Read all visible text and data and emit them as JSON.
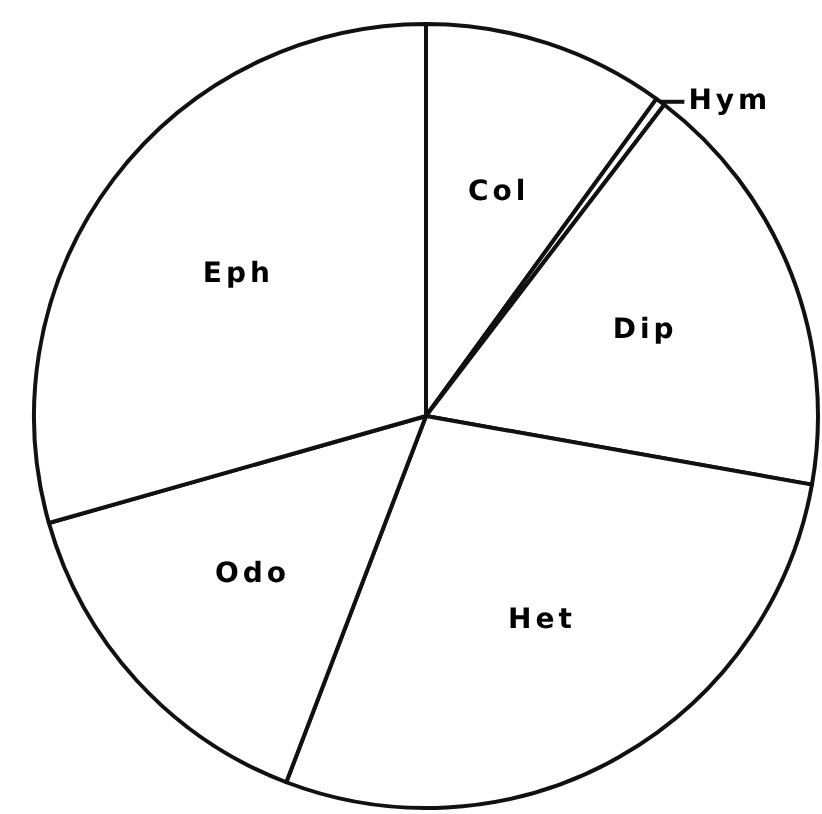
{
  "chart_data": {
    "type": "pie",
    "categories": [
      "Col",
      "Hym",
      "Dip",
      "Het",
      "Odo",
      "Eph"
    ],
    "values": [
      10.0,
      0.4,
      17.4,
      28.0,
      14.8,
      29.4
    ],
    "colors": [
      "#ffffff",
      "#ffffff",
      "#ffffff",
      "#ffffff",
      "#ffffff",
      "#ffffff"
    ]
  }
}
